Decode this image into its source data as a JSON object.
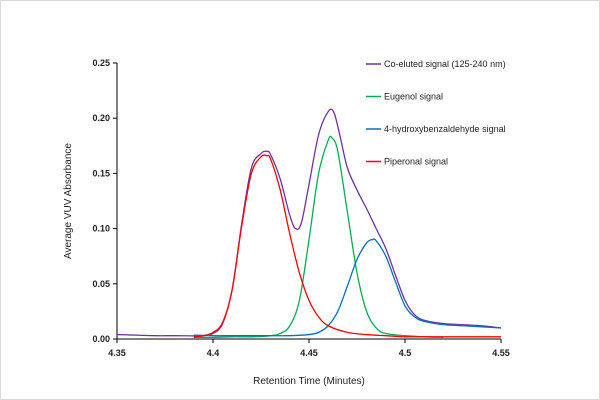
{
  "chart_data": {
    "type": "line",
    "title": "",
    "xlabel": "Retention Time (Minutes)",
    "ylabel": "Average VUV Absorbance",
    "xlim": [
      4.35,
      4.55
    ],
    "ylim": [
      0,
      0.25
    ],
    "x_ticks": [
      "4.35",
      "4.4",
      "4.45",
      "4.5",
      "4.55"
    ],
    "y_ticks": [
      "0.00",
      "0.05",
      "0.10",
      "0.15",
      "0.20",
      "0.25"
    ],
    "legend_position": "top-right",
    "series": [
      {
        "name": "Co-eluted signal (125-240 nm)",
        "color": "#7030a0",
        "x": [
          4.35,
          4.36,
          4.37,
          4.38,
          4.39,
          4.395,
          4.4,
          4.405,
          4.41,
          4.415,
          4.42,
          4.425,
          4.428,
          4.43,
          4.435,
          4.44,
          4.443,
          4.446,
          4.45,
          4.455,
          4.46,
          4.463,
          4.466,
          4.47,
          4.475,
          4.48,
          4.485,
          4.49,
          4.495,
          4.5,
          4.505,
          4.51,
          4.52,
          4.53,
          4.54,
          4.55
        ],
        "values": [
          0.004,
          0.0035,
          0.003,
          0.003,
          0.0028,
          0.003,
          0.005,
          0.014,
          0.045,
          0.105,
          0.155,
          0.168,
          0.17,
          0.167,
          0.145,
          0.112,
          0.1,
          0.105,
          0.14,
          0.185,
          0.206,
          0.205,
          0.185,
          0.155,
          0.135,
          0.118,
          0.1,
          0.082,
          0.058,
          0.035,
          0.022,
          0.017,
          0.014,
          0.013,
          0.012,
          0.01
        ]
      },
      {
        "name": "Eugenol signal",
        "color": "#00b050",
        "x": [
          4.39,
          4.4,
          4.41,
          4.42,
          4.43,
          4.435,
          4.44,
          4.445,
          4.45,
          4.455,
          4.46,
          4.462,
          4.465,
          4.47,
          4.475,
          4.48,
          4.485,
          4.49,
          4.5,
          4.51,
          4.52
        ],
        "values": [
          0.0015,
          0.0015,
          0.002,
          0.002,
          0.003,
          0.005,
          0.012,
          0.035,
          0.09,
          0.15,
          0.18,
          0.182,
          0.17,
          0.115,
          0.06,
          0.025,
          0.01,
          0.005,
          0.003,
          0.002,
          0.0015
        ]
      },
      {
        "name": "4-hydroxybenzaldehyde signal",
        "color": "#0070c0",
        "x": [
          4.39,
          4.4,
          4.41,
          4.42,
          4.43,
          4.44,
          4.45,
          4.455,
          4.46,
          4.465,
          4.47,
          4.475,
          4.48,
          4.483,
          4.485,
          4.49,
          4.495,
          4.5,
          4.505,
          4.51,
          4.52,
          4.53,
          4.54,
          4.55
        ],
        "values": [
          0.0035,
          0.003,
          0.003,
          0.003,
          0.003,
          0.003,
          0.004,
          0.006,
          0.012,
          0.025,
          0.048,
          0.072,
          0.087,
          0.09,
          0.089,
          0.075,
          0.052,
          0.03,
          0.02,
          0.016,
          0.013,
          0.012,
          0.011,
          0.01
        ]
      },
      {
        "name": "Piperonal signal",
        "color": "#ff0000",
        "x": [
          4.39,
          4.395,
          4.4,
          4.405,
          4.41,
          4.415,
          4.42,
          4.425,
          4.428,
          4.43,
          4.435,
          4.44,
          4.445,
          4.45,
          4.455,
          4.46,
          4.47,
          4.48,
          4.49,
          4.5,
          4.51,
          4.52,
          4.53,
          4.54,
          4.55
        ],
        "values": [
          0.0018,
          0.003,
          0.006,
          0.015,
          0.045,
          0.103,
          0.15,
          0.165,
          0.166,
          0.163,
          0.135,
          0.095,
          0.06,
          0.035,
          0.02,
          0.012,
          0.006,
          0.004,
          0.003,
          0.002,
          0.002,
          0.002,
          0.002,
          0.002,
          0.002
        ]
      }
    ]
  }
}
